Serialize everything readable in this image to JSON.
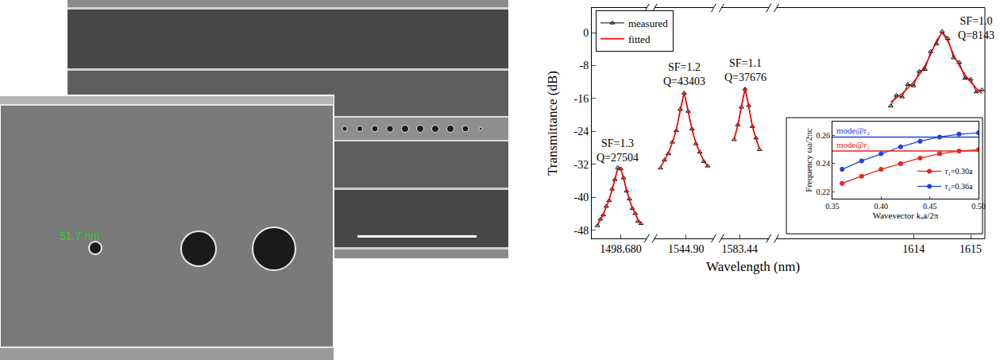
{
  "sem_images": {
    "measurement_label": "51.7 nm"
  },
  "chart_data": [
    {
      "type": "line",
      "x_label": "Wavelength (nm)",
      "y_label": "Transmittance (dB)",
      "ylim": [
        -50,
        6
      ],
      "yticks": [
        -48,
        -40,
        -32,
        -24,
        -16,
        -8,
        0
      ],
      "grid": false,
      "legend": "upper left",
      "panels": [
        {
          "xlim": [
            1498.58,
            1498.77
          ],
          "xticks": [
            {
              "value": 1498.68,
              "label": "1498.680"
            }
          ],
          "annotations": [
            "SF=1.3",
            "Q=27504"
          ],
          "x": [
            1498.6,
            1498.61,
            1498.62,
            1498.63,
            1498.64,
            1498.65,
            1498.66,
            1498.67,
            1498.68,
            1498.69,
            1498.7,
            1498.71,
            1498.72,
            1498.73,
            1498.74,
            1498.75
          ],
          "series": [
            {
              "name": "measured",
              "color": "#000000",
              "marker": "triangle-up-open",
              "line_style": "solid",
              "values": [
                -46.9,
                -45.3,
                -44.3,
                -42.2,
                -40.8,
                -38.0,
                -35.7,
                -32.8,
                -33.1,
                -35.3,
                -38.5,
                -40.4,
                -42.7,
                -43.9,
                -45.8,
                -46.4
              ]
            },
            {
              "name": "fitted",
              "color": "#ff0000",
              "line_style": "solid",
              "values": [
                -46.6,
                -45.5,
                -44.1,
                -42.5,
                -40.6,
                -38.3,
                -35.5,
                -33.0,
                -33.0,
                -35.5,
                -38.3,
                -40.6,
                -42.5,
                -44.1,
                -45.5,
                -46.6
              ]
            }
          ]
        },
        {
          "xlim": [
            1544.82,
            1544.97
          ],
          "xticks": [
            {
              "value": 1544.9,
              "label": "1544.90"
            }
          ],
          "annotations": [
            "SF=1.2",
            "Q=43403"
          ],
          "x": [
            1544.835,
            1544.845,
            1544.855,
            1544.865,
            1544.875,
            1544.885,
            1544.895,
            1544.905,
            1544.915,
            1544.925,
            1544.935,
            1544.945,
            1544.955
          ],
          "series": [
            {
              "name": "measured",
              "color": "#000000",
              "marker": "triangle-up-open",
              "line_style": "solid",
              "values": [
                -32.9,
                -30.9,
                -29.4,
                -26.6,
                -23.8,
                -18.6,
                -14.7,
                -19.1,
                -23.4,
                -27.0,
                -29.0,
                -31.3,
                -32.4
              ]
            },
            {
              "name": "fitted",
              "color": "#ff0000",
              "line_style": "solid",
              "values": [
                -32.6,
                -31.1,
                -29.2,
                -26.8,
                -23.6,
                -18.9,
                -14.5,
                -18.9,
                -23.6,
                -26.8,
                -29.2,
                -31.1,
                -32.6
              ]
            }
          ]
        },
        {
          "xlim": [
            1583.39,
            1583.52
          ],
          "xticks": [
            1583.44
          ],
          "annotations": [
            "SF=1.1",
            "Q=37676"
          ],
          "x": [
            1583.425,
            1583.435,
            1583.445,
            1583.455,
            1583.465,
            1583.475,
            1583.485,
            1583.495
          ],
          "series": [
            {
              "name": "measured",
              "color": "#000000",
              "marker": "triangle-up-open",
              "line_style": "solid",
              "values": [
                -26.0,
                -22.4,
                -18.1,
                -13.7,
                -17.7,
                -22.8,
                -25.6,
                -28.4
              ]
            },
            {
              "name": "fitted",
              "color": "#ff0000",
              "line_style": "solid",
              "values": [
                -25.8,
                -22.6,
                -17.9,
                -13.5,
                -17.9,
                -22.6,
                -25.8,
                -28.2
              ]
            }
          ]
        },
        {
          "xlim": [
            1611.6,
            1615.25
          ],
          "xticks": [
            1614,
            1615
          ],
          "annotations": [
            "SF=1.0",
            "Q=8143"
          ],
          "x": [
            1613.6,
            1613.7,
            1613.8,
            1613.9,
            1614.0,
            1614.1,
            1614.2,
            1614.3,
            1614.4,
            1614.5,
            1614.6,
            1614.7,
            1614.8,
            1614.9,
            1615.0,
            1615.1,
            1615.2
          ],
          "series": [
            {
              "name": "measured",
              "color": "#000000",
              "marker": "triangle-up-open",
              "line_style": "solid",
              "values": [
                -17.8,
                -15.2,
                -15.6,
                -12.6,
                -12.9,
                -9.4,
                -8.9,
                -4.6,
                -2.7,
                0.3,
                -1.4,
                -6.1,
                -7.2,
                -11.1,
                -11.3,
                -14.4,
                -13.9
              ]
            },
            {
              "name": "fitted",
              "color": "#ff0000",
              "line_style": "solid",
              "values": [
                -16.9,
                -15.9,
                -14.8,
                -13.5,
                -12.0,
                -10.2,
                -8.0,
                -5.3,
                -2.0,
                0,
                -2.0,
                -5.3,
                -8.0,
                -10.2,
                -12.0,
                -13.5,
                -14.8
              ]
            }
          ]
        }
      ]
    },
    {
      "type": "line",
      "x_label": "Wavevector kₓa/2π",
      "y_label": "Frequency ωa/2πc",
      "xlim": [
        0.35,
        0.5
      ],
      "xticks": [
        0.35,
        {
          "value": 0.4,
          "label": "0.40"
        },
        0.45,
        {
          "value": 0.5,
          "label": "0.50"
        }
      ],
      "ylim": [
        0.215,
        0.27
      ],
      "yticks": [
        0.22,
        0.24,
        0.26
      ],
      "grid": false,
      "legend": "lower right",
      "x": [
        0.36,
        0.38,
        0.4,
        0.42,
        0.44,
        0.46,
        0.48,
        0.5
      ],
      "series": [
        {
          "name": "r₁=0.30a",
          "color": "#e8261c",
          "marker": "circle",
          "line_style": "solid",
          "values": [
            0.226,
            0.231,
            0.236,
            0.24,
            0.244,
            0.247,
            0.249,
            0.25
          ]
        },
        {
          "name": "r₂=0.36a",
          "color": "#2142e0",
          "marker": "circle",
          "line_style": "solid",
          "values": [
            0.236,
            0.242,
            0.247,
            0.252,
            0.256,
            0.259,
            0.261,
            0.262
          ]
        }
      ],
      "reference_lines": [
        {
          "label": "mode@r₂",
          "value": 0.259,
          "color": "#2142e0"
        },
        {
          "label": "mode@r₁",
          "value": 0.249,
          "color": "#e8261c"
        }
      ]
    }
  ]
}
